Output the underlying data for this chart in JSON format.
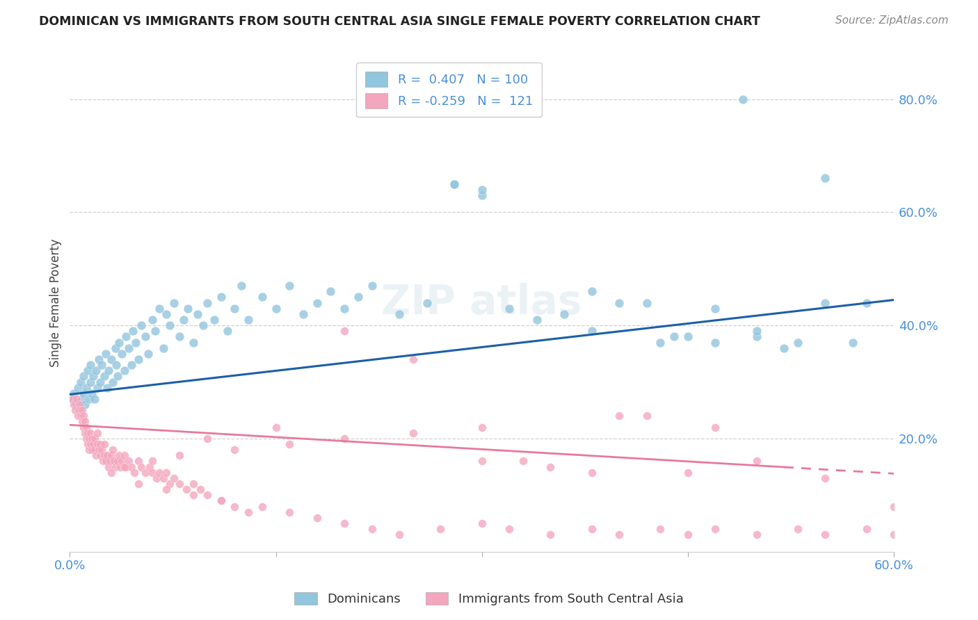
{
  "title": "DOMINICAN VS IMMIGRANTS FROM SOUTH CENTRAL ASIA SINGLE FEMALE POVERTY CORRELATION CHART",
  "source": "Source: ZipAtlas.com",
  "ylabel": "Single Female Poverty",
  "legend_label1": "Dominicans",
  "legend_label2": "Immigrants from South Central Asia",
  "r1": 0.407,
  "n1": 100,
  "r2": -0.259,
  "n2": 121,
  "color_blue": "#92c5de",
  "color_pink": "#f4a6be",
  "line_blue": "#1a5fa8",
  "line_pink": "#e8799a",
  "xlim": [
    0.0,
    0.6
  ],
  "ylim": [
    0.0,
    0.88
  ],
  "blue_x": [
    0.002,
    0.003,
    0.005,
    0.006,
    0.007,
    0.008,
    0.009,
    0.01,
    0.01,
    0.011,
    0.012,
    0.013,
    0.014,
    0.015,
    0.015,
    0.016,
    0.017,
    0.018,
    0.019,
    0.02,
    0.021,
    0.022,
    0.023,
    0.025,
    0.026,
    0.027,
    0.028,
    0.03,
    0.031,
    0.033,
    0.034,
    0.035,
    0.036,
    0.038,
    0.04,
    0.041,
    0.043,
    0.045,
    0.046,
    0.048,
    0.05,
    0.052,
    0.055,
    0.057,
    0.06,
    0.062,
    0.065,
    0.068,
    0.07,
    0.073,
    0.076,
    0.08,
    0.083,
    0.086,
    0.09,
    0.093,
    0.097,
    0.1,
    0.105,
    0.11,
    0.115,
    0.12,
    0.125,
    0.13,
    0.14,
    0.15,
    0.16,
    0.17,
    0.18,
    0.19,
    0.2,
    0.21,
    0.22,
    0.24,
    0.26,
    0.28,
    0.3,
    0.32,
    0.34,
    0.36,
    0.38,
    0.4,
    0.43,
    0.45,
    0.47,
    0.5,
    0.52,
    0.55,
    0.57,
    0.28,
    0.3,
    0.49,
    0.55,
    0.38,
    0.42,
    0.44,
    0.47,
    0.5,
    0.53,
    0.58
  ],
  "blue_y": [
    0.27,
    0.28,
    0.26,
    0.29,
    0.25,
    0.3,
    0.27,
    0.28,
    0.31,
    0.26,
    0.29,
    0.32,
    0.27,
    0.3,
    0.33,
    0.28,
    0.31,
    0.27,
    0.32,
    0.29,
    0.34,
    0.3,
    0.33,
    0.31,
    0.35,
    0.29,
    0.32,
    0.34,
    0.3,
    0.36,
    0.33,
    0.31,
    0.37,
    0.35,
    0.32,
    0.38,
    0.36,
    0.33,
    0.39,
    0.37,
    0.34,
    0.4,
    0.38,
    0.35,
    0.41,
    0.39,
    0.43,
    0.36,
    0.42,
    0.4,
    0.44,
    0.38,
    0.41,
    0.43,
    0.37,
    0.42,
    0.4,
    0.44,
    0.41,
    0.45,
    0.39,
    0.43,
    0.47,
    0.41,
    0.45,
    0.43,
    0.47,
    0.42,
    0.44,
    0.46,
    0.43,
    0.45,
    0.47,
    0.42,
    0.44,
    0.65,
    0.63,
    0.43,
    0.41,
    0.42,
    0.39,
    0.44,
    0.37,
    0.38,
    0.37,
    0.38,
    0.36,
    0.44,
    0.37,
    0.65,
    0.64,
    0.8,
    0.66,
    0.46,
    0.44,
    0.38,
    0.43,
    0.39,
    0.37,
    0.44
  ],
  "pink_x": [
    0.002,
    0.003,
    0.004,
    0.005,
    0.006,
    0.007,
    0.007,
    0.008,
    0.009,
    0.009,
    0.01,
    0.01,
    0.011,
    0.011,
    0.012,
    0.012,
    0.013,
    0.013,
    0.014,
    0.014,
    0.015,
    0.015,
    0.016,
    0.016,
    0.017,
    0.018,
    0.018,
    0.019,
    0.02,
    0.02,
    0.021,
    0.022,
    0.022,
    0.023,
    0.024,
    0.025,
    0.025,
    0.026,
    0.027,
    0.028,
    0.029,
    0.03,
    0.031,
    0.032,
    0.033,
    0.035,
    0.036,
    0.037,
    0.038,
    0.04,
    0.041,
    0.043,
    0.045,
    0.047,
    0.05,
    0.052,
    0.055,
    0.058,
    0.06,
    0.063,
    0.065,
    0.068,
    0.07,
    0.073,
    0.076,
    0.08,
    0.085,
    0.09,
    0.095,
    0.1,
    0.11,
    0.12,
    0.13,
    0.14,
    0.16,
    0.18,
    0.2,
    0.22,
    0.24,
    0.27,
    0.3,
    0.32,
    0.35,
    0.38,
    0.4,
    0.43,
    0.45,
    0.47,
    0.5,
    0.53,
    0.55,
    0.58,
    0.6,
    0.3,
    0.35,
    0.4,
    0.45,
    0.5,
    0.55,
    0.6,
    0.2,
    0.25,
    0.15,
    0.1,
    0.33,
    0.38,
    0.42,
    0.47,
    0.3,
    0.25,
    0.2,
    0.16,
    0.12,
    0.08,
    0.06,
    0.04,
    0.03,
    0.05,
    0.07,
    0.09,
    0.11
  ],
  "pink_y": [
    0.27,
    0.26,
    0.25,
    0.27,
    0.24,
    0.26,
    0.25,
    0.24,
    0.25,
    0.23,
    0.24,
    0.22,
    0.23,
    0.21,
    0.22,
    0.2,
    0.21,
    0.19,
    0.2,
    0.18,
    0.21,
    0.19,
    0.2,
    0.18,
    0.19,
    0.18,
    0.2,
    0.17,
    0.19,
    0.21,
    0.18,
    0.19,
    0.17,
    0.18,
    0.16,
    0.17,
    0.19,
    0.16,
    0.17,
    0.15,
    0.16,
    0.17,
    0.18,
    0.16,
    0.15,
    0.16,
    0.17,
    0.15,
    0.16,
    0.17,
    0.15,
    0.16,
    0.15,
    0.14,
    0.16,
    0.15,
    0.14,
    0.15,
    0.14,
    0.13,
    0.14,
    0.13,
    0.14,
    0.12,
    0.13,
    0.12,
    0.11,
    0.12,
    0.11,
    0.1,
    0.09,
    0.08,
    0.07,
    0.08,
    0.07,
    0.06,
    0.05,
    0.04,
    0.03,
    0.04,
    0.05,
    0.04,
    0.03,
    0.04,
    0.03,
    0.04,
    0.03,
    0.04,
    0.03,
    0.04,
    0.03,
    0.04,
    0.03,
    0.16,
    0.15,
    0.24,
    0.14,
    0.16,
    0.13,
    0.08,
    0.39,
    0.34,
    0.22,
    0.2,
    0.16,
    0.14,
    0.24,
    0.22,
    0.22,
    0.21,
    0.2,
    0.19,
    0.18,
    0.17,
    0.16,
    0.15,
    0.14,
    0.12,
    0.11,
    0.1,
    0.09
  ],
  "ytick_vals": [
    0.2,
    0.4,
    0.6,
    0.8
  ],
  "ytick_labels": [
    "20.0%",
    "40.0%",
    "60.0%",
    "80.0%"
  ],
  "xtick_vals": [
    0.0,
    0.15,
    0.3,
    0.45,
    0.6
  ],
  "grid_color": "#d0d0d0",
  "bg_color": "#ffffff",
  "title_color": "#222222",
  "source_color": "#888888",
  "ylabel_color": "#444444",
  "ytick_color": "#4a90d9",
  "xtick_label_color": "#4a90d9",
  "blue_line_y0": 0.278,
  "blue_line_y1": 0.445,
  "pink_line_y0": 0.224,
  "pink_line_y1": 0.138
}
